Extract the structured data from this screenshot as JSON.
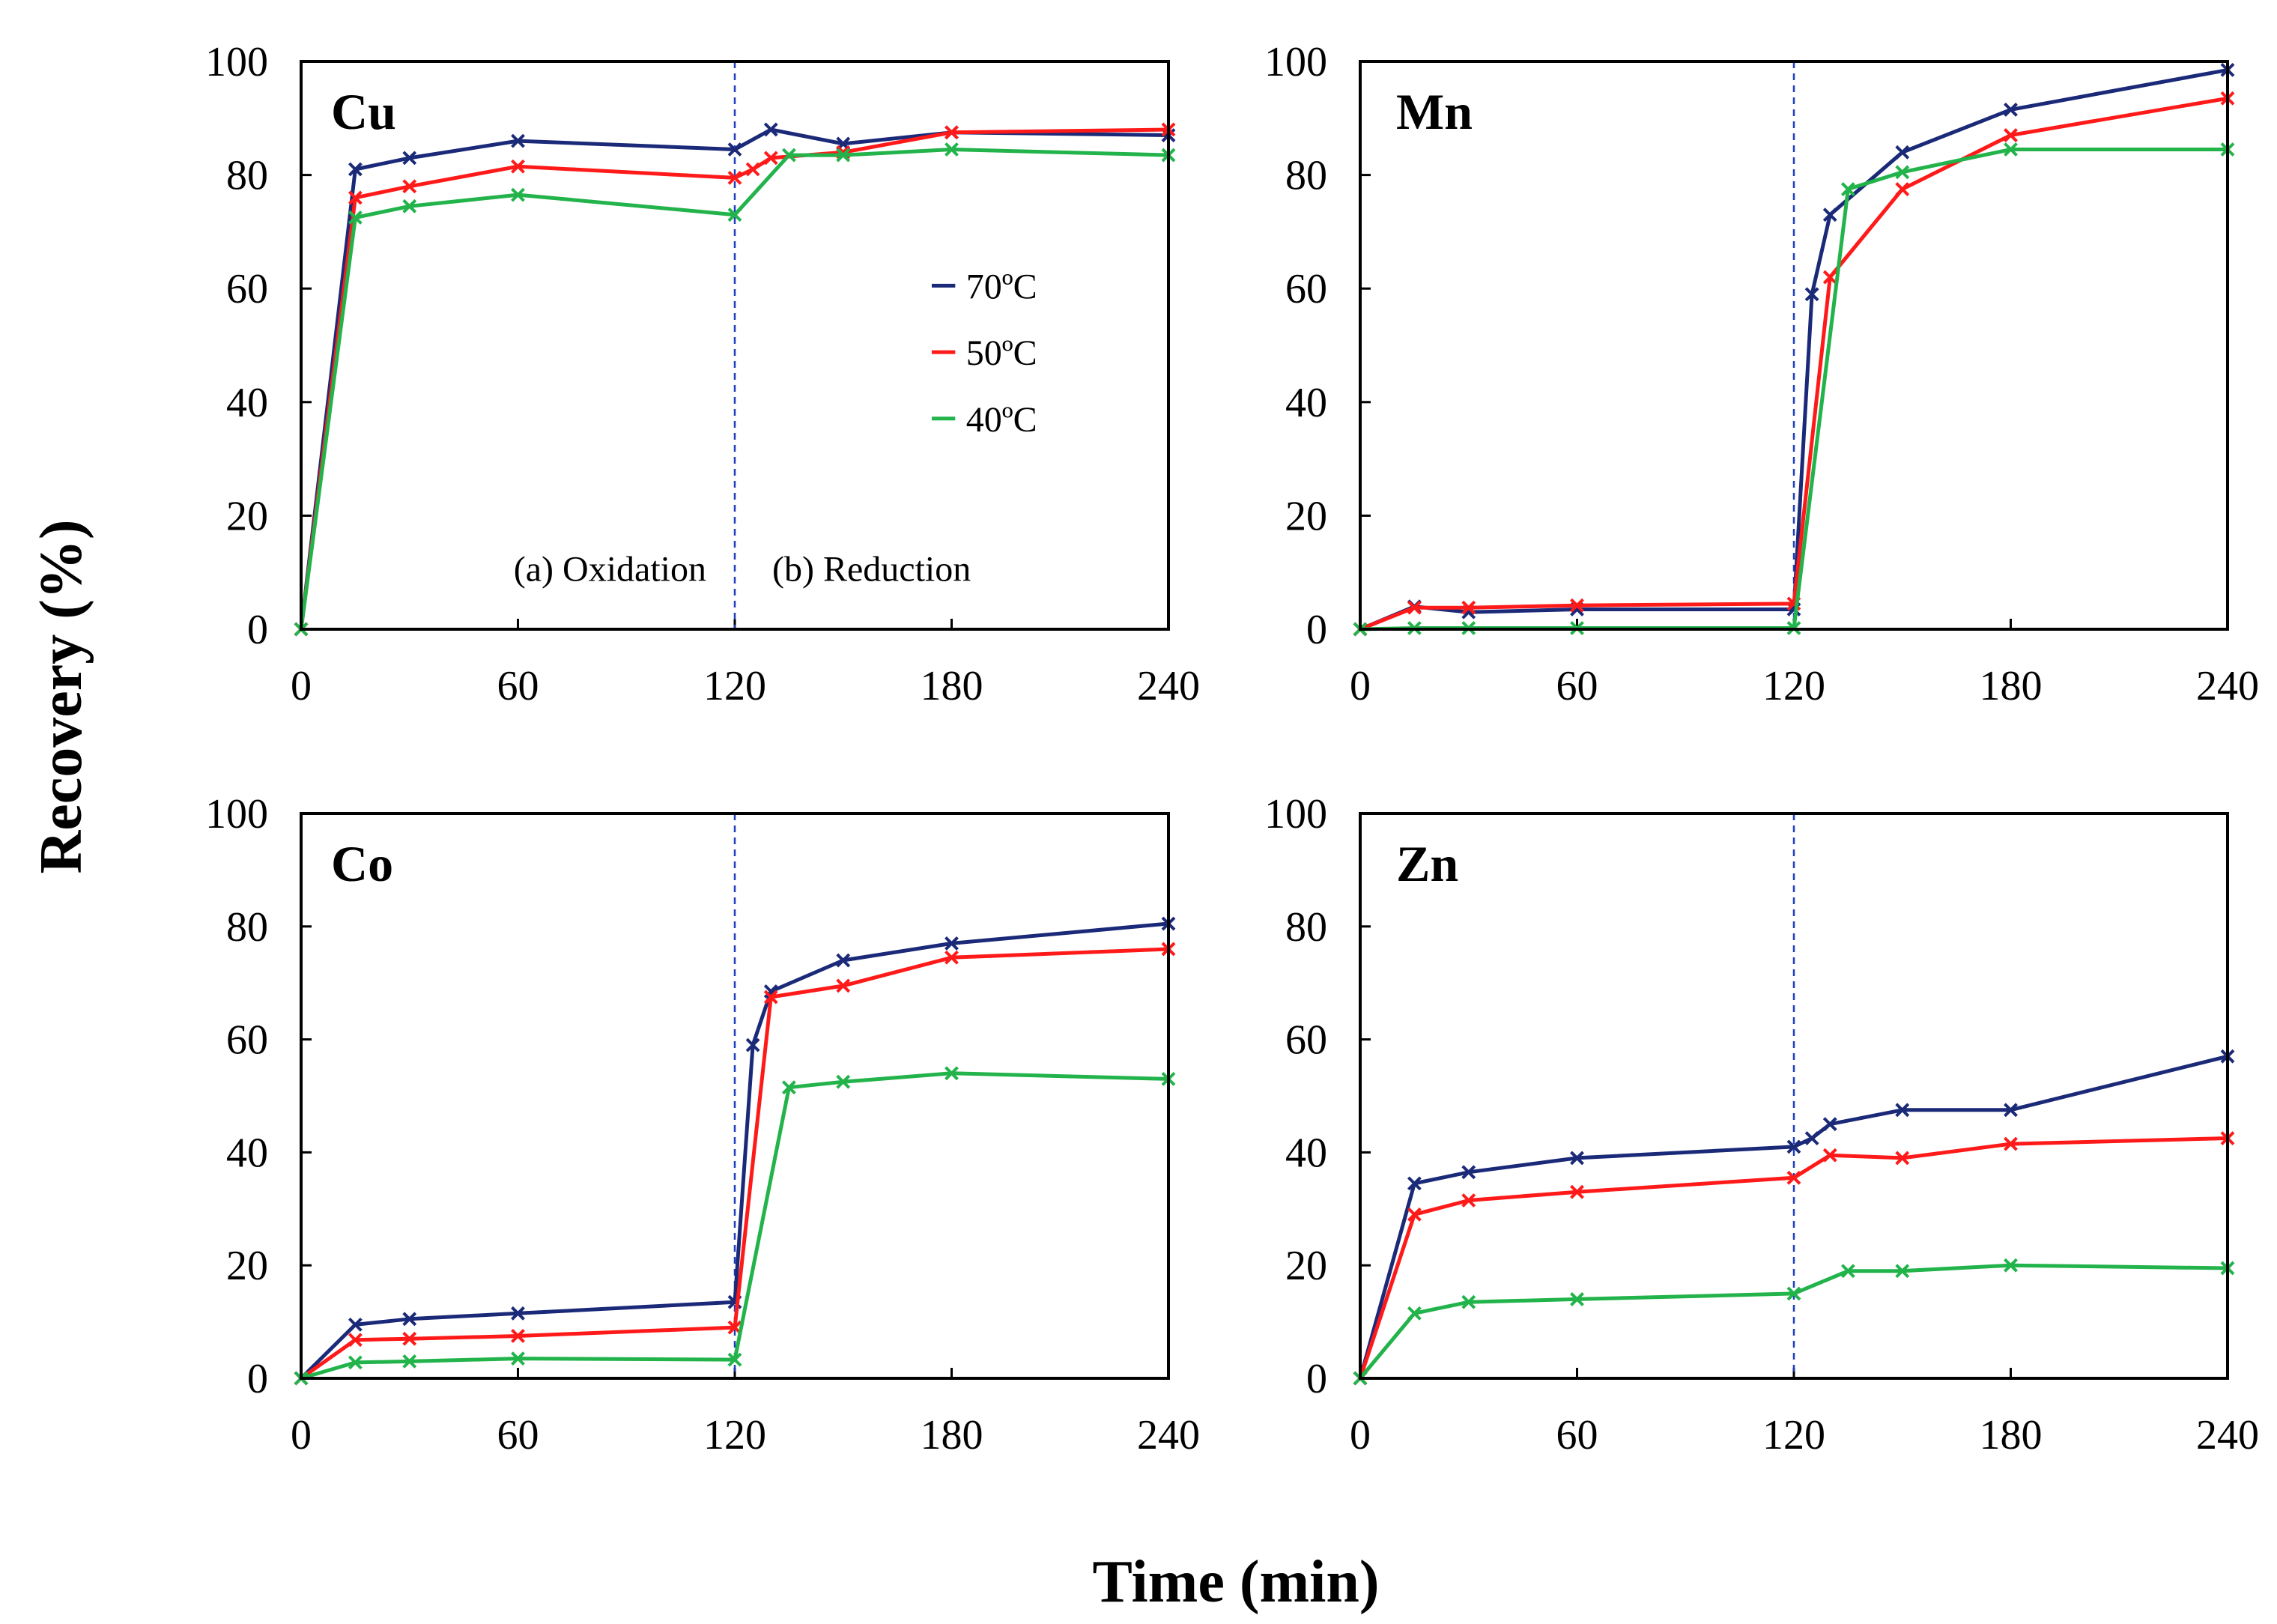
{
  "chart_data": {
    "type": "line",
    "xlabel": "Time (min)",
    "ylabel": "Recovery (%)",
    "xlim": [
      0,
      240
    ],
    "ylim": [
      0,
      100
    ],
    "xticks": [
      0,
      60,
      120,
      180,
      240
    ],
    "yticks": [
      0,
      20,
      40,
      60,
      80,
      100
    ],
    "grid": false,
    "divider_x": 120,
    "phase_labels": {
      "left": "(a) Oxidation",
      "right": "(b) Reduction"
    },
    "legend": {
      "placement": "inside Cu panel, right of divider",
      "entries": [
        {
          "label": "70ºC",
          "color": "#1b2a78"
        },
        {
          "label": "50ºC",
          "color": "#ff1a1a"
        },
        {
          "label": "40ºC",
          "color": "#22b34b"
        }
      ]
    },
    "panels": [
      {
        "metal": "Cu",
        "series": [
          {
            "name": "70ºC",
            "color": "#1b2a78",
            "x": [
              0,
              15,
              30,
              60,
              120,
              130,
              150,
              180,
              240
            ],
            "y": [
              0,
              81,
              83,
              86,
              84.5,
              88,
              85.5,
              87.5,
              87
            ]
          },
          {
            "name": "50ºC",
            "color": "#ff1a1a",
            "x": [
              0,
              15,
              30,
              60,
              120,
              125,
              130,
              150,
              180,
              240
            ],
            "y": [
              0,
              76,
              78,
              81.5,
              79.5,
              81,
              83,
              84,
              87.5,
              88
            ]
          },
          {
            "name": "40ºC",
            "color": "#22b34b",
            "x": [
              0,
              15,
              30,
              60,
              120,
              135,
              150,
              180,
              240
            ],
            "y": [
              0,
              72.5,
              74.5,
              76.5,
              73,
              83.5,
              83.5,
              84.5,
              83.5
            ]
          }
        ]
      },
      {
        "metal": "Mn",
        "series": [
          {
            "name": "70ºC",
            "color": "#1b2a78",
            "x": [
              0,
              15,
              30,
              60,
              120,
              125,
              130,
              150,
              180,
              240
            ],
            "y": [
              0,
              4,
              3,
              3.5,
              3.5,
              59,
              73,
              84,
              91.5,
              98.5
            ]
          },
          {
            "name": "50ºC",
            "color": "#ff1a1a",
            "x": [
              0,
              15,
              30,
              60,
              120,
              130,
              150,
              180,
              240
            ],
            "y": [
              0,
              3.8,
              3.8,
              4.2,
              4.5,
              62,
              77.5,
              87,
              93.5
            ]
          },
          {
            "name": "40ºC",
            "color": "#22b34b",
            "x": [
              0,
              15,
              30,
              60,
              120,
              135,
              150,
              180,
              240
            ],
            "y": [
              0,
              0.2,
              0.2,
              0.2,
              0.2,
              77.5,
              80.5,
              84.5,
              84.5
            ]
          }
        ]
      },
      {
        "metal": "Co",
        "series": [
          {
            "name": "70ºC",
            "color": "#1b2a78",
            "x": [
              0,
              15,
              30,
              60,
              120,
              125,
              130,
              150,
              180,
              240
            ],
            "y": [
              0,
              9.5,
              10.5,
              11.5,
              13.5,
              59,
              68.5,
              74,
              77,
              80.5
            ]
          },
          {
            "name": "50ºC",
            "color": "#ff1a1a",
            "x": [
              0,
              15,
              30,
              60,
              120,
              130,
              150,
              180,
              240
            ],
            "y": [
              0,
              6.8,
              7,
              7.5,
              9,
              67.5,
              69.5,
              74.5,
              76
            ]
          },
          {
            "name": "40ºC",
            "color": "#22b34b",
            "x": [
              0,
              15,
              30,
              60,
              120,
              135,
              150,
              180,
              240
            ],
            "y": [
              0,
              2.8,
              3,
              3.5,
              3.3,
              51.5,
              52.5,
              54,
              53
            ]
          }
        ]
      },
      {
        "metal": "Zn",
        "series": [
          {
            "name": "70ºC",
            "color": "#1b2a78",
            "x": [
              0,
              15,
              30,
              60,
              120,
              125,
              130,
              150,
              180,
              240
            ],
            "y": [
              0,
              34.5,
              36.5,
              39,
              41,
              42.5,
              45,
              47.5,
              47.5,
              57
            ]
          },
          {
            "name": "50ºC",
            "color": "#ff1a1a",
            "x": [
              0,
              15,
              30,
              60,
              120,
              130,
              150,
              180,
              240
            ],
            "y": [
              0,
              29,
              31.5,
              33,
              35.5,
              39.5,
              39,
              41.5,
              42.5
            ]
          },
          {
            "name": "40ºC",
            "color": "#22b34b",
            "x": [
              0,
              15,
              30,
              60,
              120,
              135,
              150,
              180,
              240
            ],
            "y": [
              0,
              11.5,
              13.5,
              14,
              15,
              19,
              19,
              20,
              19.5
            ]
          }
        ]
      }
    ]
  }
}
